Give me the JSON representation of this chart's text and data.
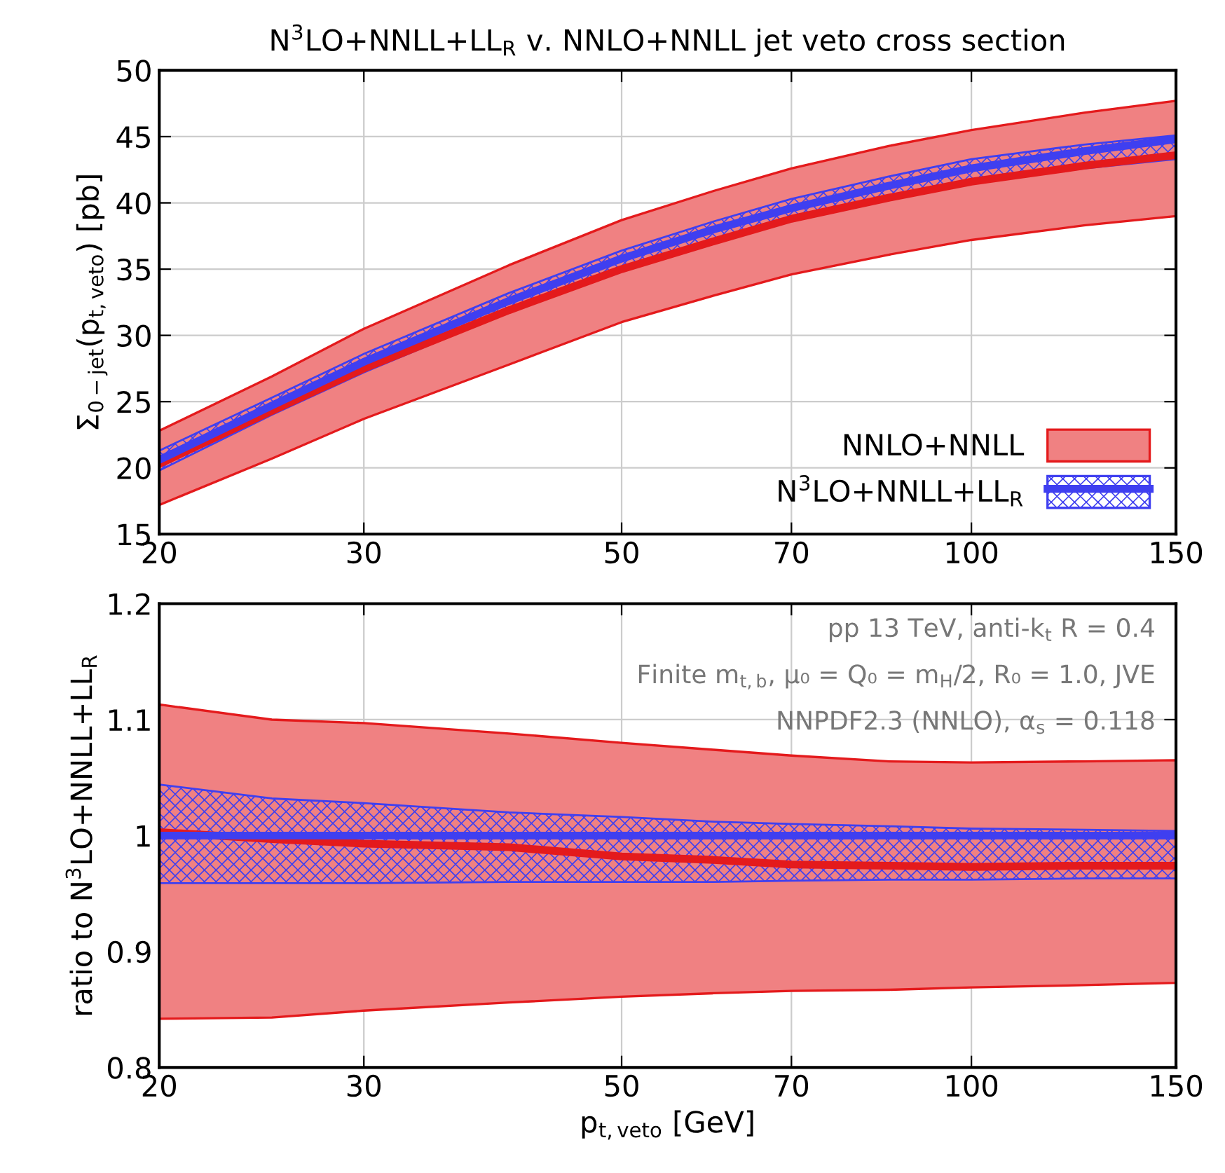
{
  "chart_data": [
    {
      "type": "line",
      "title": "N$^{3}$LO+NNLL+LL$_{R}$ v. NNLO+NNLL jet veto cross section",
      "ylabel": "Σ$_{0−jet}$(p$_{t,veto}$) [pb]",
      "x": [
        20,
        25,
        30,
        40,
        50,
        60,
        70,
        85,
        100,
        125,
        150
      ],
      "log": "x",
      "xlim": [
        20,
        150
      ],
      "xticks": [
        20,
        30,
        50,
        70,
        100,
        150
      ],
      "ylim": [
        15,
        50
      ],
      "yticks": [
        15,
        20,
        25,
        30,
        35,
        40,
        45,
        50
      ],
      "grid": true,
      "legend": "bottom right",
      "series": [
        {
          "name": "NNLO+NNLL",
          "color": "#e41a1c",
          "values": [
            20.3,
            24.3,
            27.5,
            31.9,
            35.0,
            37.1,
            38.8,
            40.4,
            41.6,
            42.8,
            43.6
          ],
          "upper": [
            22.8,
            26.9,
            30.5,
            35.3,
            38.7,
            40.9,
            42.6,
            44.3,
            45.5,
            46.8,
            47.7
          ],
          "lower": [
            17.2,
            20.7,
            23.7,
            27.8,
            31.0,
            33.0,
            34.6,
            36.1,
            37.2,
            38.3,
            39.0
          ]
        },
        {
          "name": "N$^{3}$LO+NNLL+LL$_{R}$",
          "color": "#3f3ff0",
          "values": [
            20.6,
            24.7,
            28.0,
            32.6,
            35.8,
            38.0,
            39.6,
            41.3,
            42.6,
            43.9,
            44.8
          ],
          "upper": [
            21.3,
            25.3,
            28.6,
            33.2,
            36.4,
            38.6,
            40.3,
            42.0,
            43.3,
            44.4,
            45.1
          ],
          "lower": [
            19.8,
            24.0,
            27.2,
            31.8,
            34.8,
            37.0,
            38.6,
            40.2,
            41.5,
            42.6,
            43.3
          ]
        }
      ]
    },
    {
      "type": "line",
      "xlabel": "p$_{t,veto}$ [GeV]",
      "ylabel": "ratio to N$^{3}$LO+NNLL+LL$_{R}$",
      "x": [
        20,
        25,
        30,
        40,
        50,
        60,
        70,
        85,
        100,
        125,
        150
      ],
      "log": "x",
      "xlim": [
        20,
        150
      ],
      "xticks": [
        20,
        30,
        50,
        70,
        100,
        150
      ],
      "ylim": [
        0.8,
        1.2
      ],
      "yticks": [
        0.8,
        0.9,
        1,
        1.1,
        1.2
      ],
      "grid": true,
      "annotations": [
        "pp 13 TeV, anti-k$_{t}$ R = 0.4",
        "Finite m$_{t,b}$, μ₀ = Q₀ = m$_{H}$/2, R₀ = 1.0, JVE",
        "NNPDF2.3 (NNLO), α$_{s}$ = 0.118"
      ],
      "series": [
        {
          "color": "#e41a1c",
          "values": [
            1.003,
            0.997,
            0.993,
            0.99,
            0.982,
            0.979,
            0.975,
            0.974,
            0.973,
            0.974,
            0.974
          ],
          "upper": [
            1.113,
            1.1,
            1.097,
            1.088,
            1.08,
            1.074,
            1.069,
            1.064,
            1.063,
            1.064,
            1.065
          ],
          "lower": [
            0.842,
            0.843,
            0.849,
            0.856,
            0.861,
            0.864,
            0.866,
            0.867,
            0.869,
            0.871,
            0.873
          ]
        },
        {
          "color": "#3f3ff0",
          "values": [
            1,
            1,
            1,
            1,
            1,
            1,
            1,
            1,
            1,
            1,
            1
          ],
          "upper": [
            1.044,
            1.032,
            1.028,
            1.02,
            1.016,
            1.012,
            1.01,
            1.008,
            1.006,
            1.005,
            1.004
          ],
          "lower": [
            0.959,
            0.959,
            0.959,
            0.96,
            0.96,
            0.96,
            0.961,
            0.962,
            0.962,
            0.963,
            0.963
          ]
        }
      ]
    }
  ]
}
